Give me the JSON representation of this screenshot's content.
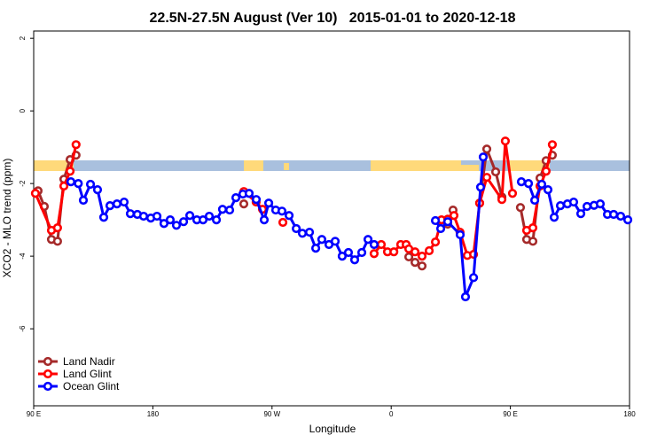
{
  "chart_data": {
    "type": "line",
    "title": "22.5N-27.5N August (Ver 10)   2015-01-01 to 2020-12-18",
    "x_label": "Longitude",
    "y_label": "XCO2 - MLO trend (ppm)",
    "xlim": [
      90,
      540
    ],
    "ylim": [
      -8.12,
      2.2
    ],
    "xticks": [
      {
        "value": 90,
        "label": "90 E"
      },
      180,
      {
        "value": 270,
        "label": "90 W"
      },
      {
        "value": 360,
        "label": "0"
      },
      {
        "value": 450,
        "label": "90 E"
      },
      {
        "value": 540,
        "label": "180"
      }
    ],
    "yticks": [
      2,
      0,
      -2,
      -4,
      -6
    ],
    "legend": "bottomleft",
    "series": [
      {
        "name": "Land Nadir",
        "color": "#a52a2a",
        "x": [
          93.3,
          98,
          103.4,
          108,
          112.8,
          117.5,
          122,
          null,
          248.7,
          null,
          373.3,
          378,
          383.3,
          null,
          402.7,
          406.7,
          null,
          426.8,
          432.2,
          438.9,
          443.6,
          null,
          457.6,
          462.3,
          467,
          472.4,
          477,
          481.7
        ],
        "values": [
          -2.2,
          -2.63,
          -3.54,
          -3.59,
          -1.88,
          -1.34,
          -1.22,
          null,
          -2.56,
          null,
          -4.02,
          -4.17,
          -4.27,
          null,
          -3.12,
          -2.73,
          null,
          -2.54,
          -1.05,
          -1.68,
          -2.37,
          null,
          -2.66,
          -3.54,
          -3.59,
          -1.85,
          -1.37,
          -1.22
        ]
      },
      {
        "name": "Land Glint",
        "color": "#ff0000",
        "x": [
          91.3,
          103.4,
          108,
          112.8,
          117.5,
          122,
          null,
          248.7,
          258,
          262.8,
          null,
          278.2,
          null,
          347.1,
          352.5,
          357.2,
          362,
          367.2,
          371.3,
          373.3,
          378,
          383.3,
          388.7,
          393.4,
          398,
          402.7,
          407.4,
          412,
          417.5,
          422.2,
          426.8,
          432.2,
          443.6,
          446.2,
          451.6,
          null,
          462.3,
          467,
          472.4,
          477,
          481.7
        ],
        "values": [
          -2.27,
          -3.29,
          -3.22,
          -2.07,
          -1.66,
          -0.93,
          null,
          -2.22,
          -2.51,
          -2.71,
          null,
          -3.07,
          null,
          -3.93,
          -3.68,
          -3.88,
          -3.88,
          -3.68,
          -3.68,
          -3.8,
          -3.88,
          -4.0,
          -3.85,
          -3.61,
          -3.0,
          -2.98,
          -2.88,
          -3.34,
          -3.98,
          -3.95,
          -2.54,
          -1.83,
          -2.44,
          -0.83,
          -2.27,
          null,
          -3.29,
          -3.22,
          -2.07,
          -1.66,
          -0.93
        ]
      },
      {
        "name": "Ocean Glint",
        "color": "#0000ff",
        "x": [
          118.1,
          123.7,
          127.5,
          132.9,
          138.2,
          142.9,
          147.6,
          152.9,
          158.3,
          163,
          168.3,
          173,
          178.4,
          183.1,
          188.4,
          193.1,
          197.8,
          203.2,
          207.9,
          213.2,
          217.9,
          222.6,
          228,
          232.6,
          238,
          242.7,
          248,
          252.7,
          258.1,
          264.1,
          267.5,
          272.8,
          277.5,
          282.9,
          288.3,
          292.9,
          298.3,
          303,
          307.6,
          313,
          317.7,
          323,
          327.7,
          332.4,
          337.8,
          342.5,
          347.1,
          null,
          393.4,
          397.4,
          402.7,
          412.1,
          416.1,
          422.2,
          427.5,
          429.5,
          null,
          458.3,
          463.7,
          468.4,
          473.7,
          478.4,
          483.1,
          487.8,
          493.1,
          497.8,
          503.2,
          507.9,
          513.2,
          517.9,
          523.3,
          528,
          533.3,
          538.7
        ],
        "values": [
          -1.95,
          -2.0,
          -2.46,
          -2.02,
          -2.17,
          -2.93,
          -2.61,
          -2.56,
          -2.51,
          -2.83,
          -2.85,
          -2.9,
          -2.95,
          -2.9,
          -3.1,
          -3.0,
          -3.15,
          -3.05,
          -2.88,
          -3.0,
          -3.0,
          -2.9,
          -3.0,
          -2.71,
          -2.73,
          -2.39,
          -2.29,
          -2.27,
          -2.44,
          -3.0,
          -2.54,
          -2.73,
          -2.76,
          -2.88,
          -3.24,
          -3.37,
          -3.34,
          -3.78,
          -3.54,
          -3.68,
          -3.59,
          -4.0,
          -3.9,
          -4.1,
          -3.9,
          -3.54,
          -3.68,
          null,
          -3.02,
          -3.24,
          -3.05,
          -3.41,
          -5.12,
          -4.59,
          -2.1,
          -1.27,
          null,
          -1.95,
          -2.0,
          -2.46,
          -2.02,
          -2.17,
          -2.93,
          -2.61,
          -2.56,
          -2.51,
          -2.83,
          -2.63,
          -2.6,
          -2.56,
          -2.85,
          -2.85,
          -2.9,
          -3.0
        ]
      }
    ]
  }
}
